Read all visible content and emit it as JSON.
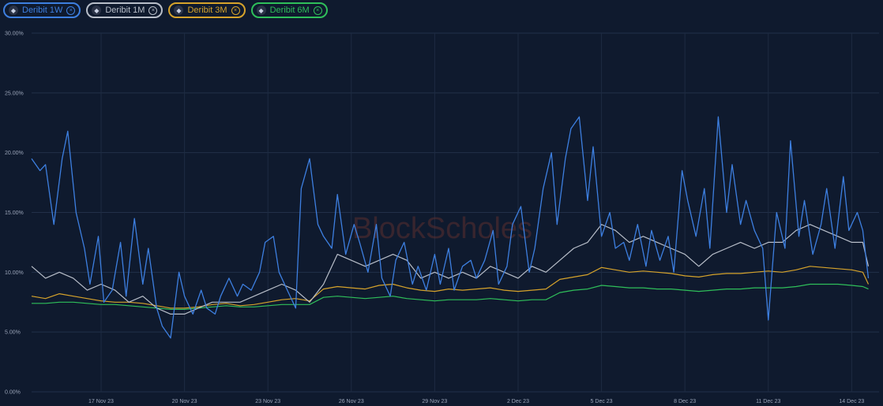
{
  "chart_data": {
    "type": "line",
    "watermark": "BlockScholes",
    "y_ticks": [
      "0.00%",
      "5.00%",
      "10.00%",
      "15.00%",
      "20.00%",
      "25.00%",
      "30.00%"
    ],
    "ylim": [
      0,
      30
    ],
    "x_ticks": [
      "17 Nov 23",
      "20 Nov 23",
      "23 Nov 23",
      "26 Nov 23",
      "29 Nov 23",
      "2 Dec 23",
      "5 Dec 23",
      "8 Dec 23",
      "11 Dec 23",
      "14 Dec 23"
    ],
    "x_tick_days": [
      17,
      20,
      23,
      26,
      29,
      32,
      35,
      38,
      41,
      44
    ],
    "xlim": [
      14.5,
      44.7
    ],
    "grid": true,
    "legend_position": "top-left",
    "series": [
      {
        "name": "Deribit 1W",
        "color": "#3d7fe0",
        "x": [
          14.5,
          14.8,
          15.0,
          15.3,
          15.6,
          15.8,
          16.1,
          16.4,
          16.6,
          16.9,
          17.1,
          17.4,
          17.7,
          17.9,
          18.2,
          18.5,
          18.7,
          19.0,
          19.2,
          19.5,
          19.8,
          20.0,
          20.3,
          20.6,
          20.8,
          21.1,
          21.3,
          21.6,
          21.9,
          22.1,
          22.4,
          22.7,
          22.9,
          23.2,
          23.4,
          23.7,
          24.0,
          24.2,
          24.5,
          24.8,
          25.0,
          25.3,
          25.5,
          25.8,
          26.1,
          26.3,
          26.6,
          26.9,
          27.1,
          27.4,
          27.6,
          27.9,
          28.2,
          28.4,
          28.7,
          29.0,
          29.2,
          29.5,
          29.7,
          30.0,
          30.3,
          30.5,
          30.8,
          31.1,
          31.3,
          31.6,
          31.8,
          32.1,
          32.4,
          32.6,
          32.9,
          33.2,
          33.4,
          33.7,
          33.9,
          34.2,
          34.5,
          34.7,
          35.0,
          35.3,
          35.5,
          35.8,
          36.0,
          36.3,
          36.6,
          36.8,
          37.1,
          37.4,
          37.6,
          37.9,
          38.1,
          38.4,
          38.7,
          38.9,
          39.2,
          39.5,
          39.7,
          40.0,
          40.2,
          40.5,
          40.8,
          41.0,
          41.3,
          41.6,
          41.8,
          42.1,
          42.3,
          42.6,
          42.9,
          43.1,
          43.4,
          43.7,
          43.9,
          44.2,
          44.4,
          44.6
        ],
        "values": [
          19.5,
          18.5,
          19.0,
          14.0,
          19.5,
          21.8,
          15.0,
          12.0,
          9.0,
          13.0,
          7.5,
          8.5,
          12.5,
          8.0,
          14.5,
          9.0,
          12.0,
          7.0,
          5.5,
          4.5,
          10.0,
          8.0,
          6.5,
          8.5,
          7.0,
          6.5,
          8.0,
          9.5,
          8.0,
          9.0,
          8.5,
          10.0,
          12.5,
          13.0,
          10.0,
          8.5,
          7.0,
          17.0,
          19.5,
          14.0,
          13.0,
          12.0,
          16.5,
          11.5,
          14.0,
          12.5,
          10.0,
          14.0,
          9.5,
          8.0,
          11.0,
          12.5,
          9.0,
          10.5,
          8.5,
          11.5,
          9.0,
          12.0,
          8.5,
          10.5,
          11.0,
          9.5,
          11.0,
          13.5,
          9.0,
          10.5,
          14.0,
          15.5,
          10.0,
          12.0,
          17.0,
          20.0,
          14.0,
          19.5,
          22.0,
          23.0,
          16.0,
          20.5,
          13.0,
          15.0,
          12.0,
          12.5,
          11.0,
          14.0,
          10.5,
          13.5,
          11.0,
          13.0,
          10.0,
          18.5,
          16.0,
          13.0,
          17.0,
          12.0,
          23.0,
          15.0,
          19.0,
          14.0,
          16.0,
          13.5,
          12.0,
          6.0,
          15.0,
          12.0,
          21.0,
          13.0,
          16.0,
          11.5,
          14.0,
          17.0,
          12.0,
          18.0,
          13.5,
          15.0,
          13.5,
          9.5
        ]
      },
      {
        "name": "Deribit 1M",
        "color": "#b8bec9",
        "x": [
          14.5,
          15.0,
          15.5,
          16.0,
          16.5,
          17.0,
          17.5,
          18.0,
          18.5,
          19.0,
          19.5,
          20.0,
          20.5,
          21.0,
          21.5,
          22.0,
          22.5,
          23.0,
          23.5,
          24.0,
          24.5,
          25.0,
          25.5,
          26.0,
          26.5,
          27.0,
          27.5,
          28.0,
          28.5,
          29.0,
          29.5,
          30.0,
          30.5,
          31.0,
          31.5,
          32.0,
          32.5,
          33.0,
          33.5,
          34.0,
          34.5,
          35.0,
          35.5,
          36.0,
          36.5,
          37.0,
          37.5,
          38.0,
          38.5,
          39.0,
          39.5,
          40.0,
          40.5,
          41.0,
          41.5,
          42.0,
          42.5,
          43.0,
          43.5,
          44.0,
          44.4,
          44.6
        ],
        "values": [
          10.5,
          9.5,
          10.0,
          9.5,
          8.5,
          9.0,
          8.5,
          7.5,
          8.0,
          7.0,
          6.5,
          6.5,
          7.0,
          7.5,
          7.5,
          7.5,
          8.0,
          8.5,
          9.0,
          8.5,
          7.5,
          9.0,
          11.5,
          11.0,
          10.5,
          11.0,
          11.5,
          11.0,
          9.5,
          10.0,
          9.5,
          10.0,
          9.5,
          10.5,
          10.0,
          9.5,
          10.5,
          10.0,
          11.0,
          12.0,
          12.5,
          14.0,
          13.5,
          12.5,
          13.0,
          12.5,
          12.0,
          11.5,
          10.5,
          11.5,
          12.0,
          12.5,
          12.0,
          12.5,
          12.5,
          13.5,
          14.0,
          13.5,
          13.0,
          12.5,
          12.5,
          10.5
        ]
      },
      {
        "name": "Deribit 3M",
        "color": "#d6a32b",
        "x": [
          14.5,
          15.0,
          15.5,
          16.0,
          16.5,
          17.0,
          17.5,
          18.0,
          18.5,
          19.0,
          19.5,
          20.0,
          20.5,
          21.0,
          21.5,
          22.0,
          22.5,
          23.0,
          23.5,
          24.0,
          24.5,
          25.0,
          25.5,
          26.0,
          26.5,
          27.0,
          27.5,
          28.0,
          28.5,
          29.0,
          29.5,
          30.0,
          30.5,
          31.0,
          31.5,
          32.0,
          32.5,
          33.0,
          33.5,
          34.0,
          34.5,
          35.0,
          35.5,
          36.0,
          36.5,
          37.0,
          37.5,
          38.0,
          38.5,
          39.0,
          39.5,
          40.0,
          40.5,
          41.0,
          41.5,
          42.0,
          42.5,
          43.0,
          43.5,
          44.0,
          44.4,
          44.6
        ],
        "values": [
          8.0,
          7.8,
          8.2,
          8.0,
          7.8,
          7.6,
          7.5,
          7.5,
          7.4,
          7.2,
          7.0,
          7.0,
          7.1,
          7.3,
          7.4,
          7.2,
          7.3,
          7.5,
          7.7,
          7.8,
          7.6,
          8.6,
          8.8,
          8.7,
          8.6,
          8.9,
          9.0,
          8.7,
          8.5,
          8.4,
          8.6,
          8.5,
          8.6,
          8.7,
          8.5,
          8.4,
          8.5,
          8.6,
          9.4,
          9.6,
          9.8,
          10.4,
          10.2,
          10.0,
          10.1,
          10.0,
          9.9,
          9.7,
          9.6,
          9.8,
          9.9,
          9.9,
          10.0,
          10.1,
          10.0,
          10.2,
          10.5,
          10.4,
          10.3,
          10.2,
          10.0,
          9.0
        ]
      },
      {
        "name": "Deribit 6M",
        "color": "#2fbf5a",
        "x": [
          14.5,
          15.0,
          15.5,
          16.0,
          16.5,
          17.0,
          17.5,
          18.0,
          18.5,
          19.0,
          19.5,
          20.0,
          20.5,
          21.0,
          21.5,
          22.0,
          22.5,
          23.0,
          23.5,
          24.0,
          24.5,
          25.0,
          25.5,
          26.0,
          26.5,
          27.0,
          27.5,
          28.0,
          28.5,
          29.0,
          29.5,
          30.0,
          30.5,
          31.0,
          31.5,
          32.0,
          32.5,
          33.0,
          33.5,
          34.0,
          34.5,
          35.0,
          35.5,
          36.0,
          36.5,
          37.0,
          37.5,
          38.0,
          38.5,
          39.0,
          39.5,
          40.0,
          40.5,
          41.0,
          41.5,
          42.0,
          42.5,
          43.0,
          43.5,
          44.0,
          44.4,
          44.6
        ],
        "values": [
          7.4,
          7.4,
          7.5,
          7.5,
          7.4,
          7.3,
          7.3,
          7.2,
          7.1,
          7.0,
          6.9,
          6.9,
          7.0,
          7.1,
          7.2,
          7.1,
          7.1,
          7.2,
          7.3,
          7.3,
          7.3,
          7.9,
          8.0,
          7.9,
          7.8,
          7.9,
          8.0,
          7.8,
          7.7,
          7.6,
          7.7,
          7.7,
          7.7,
          7.8,
          7.7,
          7.6,
          7.7,
          7.7,
          8.3,
          8.5,
          8.6,
          8.9,
          8.8,
          8.7,
          8.7,
          8.6,
          8.6,
          8.5,
          8.4,
          8.5,
          8.6,
          8.6,
          8.7,
          8.7,
          8.7,
          8.8,
          9.0,
          9.0,
          9.0,
          8.9,
          8.8,
          8.6
        ]
      }
    ]
  }
}
